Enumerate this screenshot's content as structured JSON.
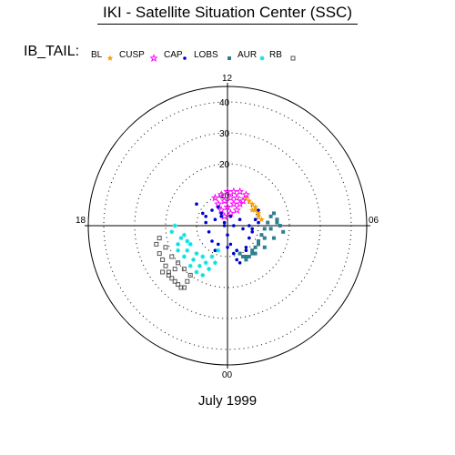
{
  "header": {
    "title": "IKI - Satellite Situation Center (SSC)"
  },
  "legend": {
    "label": "IB_TAIL:",
    "items": [
      {
        "name": "BL",
        "symbol": "star",
        "color": "#f4a000"
      },
      {
        "name": "CUSP",
        "symbol": "star-outline",
        "color": "#ff00ff"
      },
      {
        "name": "CAP",
        "symbol": "dot",
        "color": "#0000d0"
      },
      {
        "name": "LOBS",
        "symbol": "square",
        "color": "#2e8090"
      },
      {
        "name": "AUR",
        "symbol": "asterisk",
        "color": "#00e0e0"
      },
      {
        "name": "RB",
        "symbol": "square-outline",
        "color": "#555555"
      }
    ]
  },
  "footer": {
    "caption": "July 1999"
  },
  "chart_data": {
    "type": "scatter",
    "projection": "polar",
    "radial_ticks": [
      "10",
      "20",
      "30",
      "40"
    ],
    "radial_range": [
      0,
      45
    ],
    "angular_labels": {
      "top": "12",
      "right": "06",
      "bottom": "00",
      "left": "18"
    },
    "grid": true,
    "series": [
      {
        "name": "BL",
        "color": "#f4a000",
        "symbol": "star",
        "x": [
          6,
          7,
          8,
          9,
          9,
          10,
          10,
          11,
          8,
          9
        ],
        "y": [
          9,
          8,
          7,
          6,
          5,
          4,
          3,
          2,
          5,
          6
        ]
      },
      {
        "name": "CUSP",
        "color": "#ff00ff",
        "symbol": "star-outline",
        "x": [
          -4,
          -2,
          0,
          2,
          4,
          6,
          -3,
          -1,
          1,
          3,
          5,
          -2,
          0,
          2,
          4,
          1,
          3,
          -1
        ],
        "y": [
          9,
          10,
          11,
          11,
          11,
          10,
          7,
          8,
          9,
          9,
          8,
          5,
          6,
          7,
          7,
          4,
          5,
          3
        ]
      },
      {
        "name": "CAP",
        "color": "#0000d0",
        "symbol": "dot",
        "x": [
          -10,
          -8,
          -7,
          -6,
          -5,
          -4,
          -3,
          -2,
          -1,
          0,
          1,
          2,
          3,
          4,
          5,
          6,
          7,
          8,
          9,
          10,
          11,
          -7,
          -4,
          -1,
          2,
          5,
          8,
          10,
          -5,
          -2,
          1,
          4,
          7,
          -3,
          0,
          3,
          6
        ],
        "y": [
          7,
          4,
          1,
          -2,
          -5,
          -8,
          6,
          3,
          0,
          -3,
          -6,
          -9,
          -11,
          -12,
          -10,
          -7,
          -4,
          -1,
          2,
          5,
          -3,
          3,
          2,
          1,
          0,
          -1,
          -2,
          1,
          5,
          4,
          3,
          2,
          0,
          -6,
          -7,
          -8,
          -8
        ]
      },
      {
        "name": "LOBS",
        "color": "#2e8090",
        "symbol": "square",
        "x": [
          4,
          5,
          6,
          7,
          8,
          9,
          10,
          11,
          12,
          13,
          14,
          15,
          16,
          17,
          18,
          8,
          10,
          12,
          14,
          16,
          6,
          9,
          12,
          15
        ],
        "y": [
          -9,
          -10,
          -11,
          -10,
          -9,
          -7,
          -5,
          -3,
          -1,
          1,
          3,
          4,
          2,
          0,
          -2,
          -8,
          -6,
          -4,
          -1,
          1,
          -10,
          -9,
          -7,
          -4
        ]
      },
      {
        "name": "AUR",
        "color": "#00e0e0",
        "symbol": "asterisk",
        "x": [
          -18,
          -16,
          -14,
          -12,
          -10,
          -8,
          -6,
          -4,
          -17,
          -15,
          -13,
          -11,
          -9,
          -7,
          -5,
          -3,
          -14,
          -12,
          -10,
          -8,
          -16,
          -13
        ],
        "y": [
          -2,
          -6,
          -10,
          -13,
          -15,
          -16,
          -14,
          -12,
          0,
          -4,
          -8,
          -11,
          -13,
          -12,
          -10,
          -8,
          -3,
          -6,
          -9,
          -10,
          -8,
          -5
        ]
      },
      {
        "name": "RB",
        "color": "#555555",
        "symbol": "square-outline",
        "x": [
          -23,
          -22,
          -21,
          -20,
          -19,
          -18,
          -17,
          -16,
          -15,
          -14,
          -22,
          -20,
          -18,
          -16,
          -14,
          -12,
          -21,
          -19,
          -17,
          -13
        ],
        "y": [
          -6,
          -9,
          -11,
          -13,
          -15,
          -17,
          -18,
          -19,
          -20,
          -20,
          -4,
          -7,
          -10,
          -12,
          -14,
          -16,
          -15,
          -16,
          -14,
          -18
        ]
      }
    ]
  }
}
